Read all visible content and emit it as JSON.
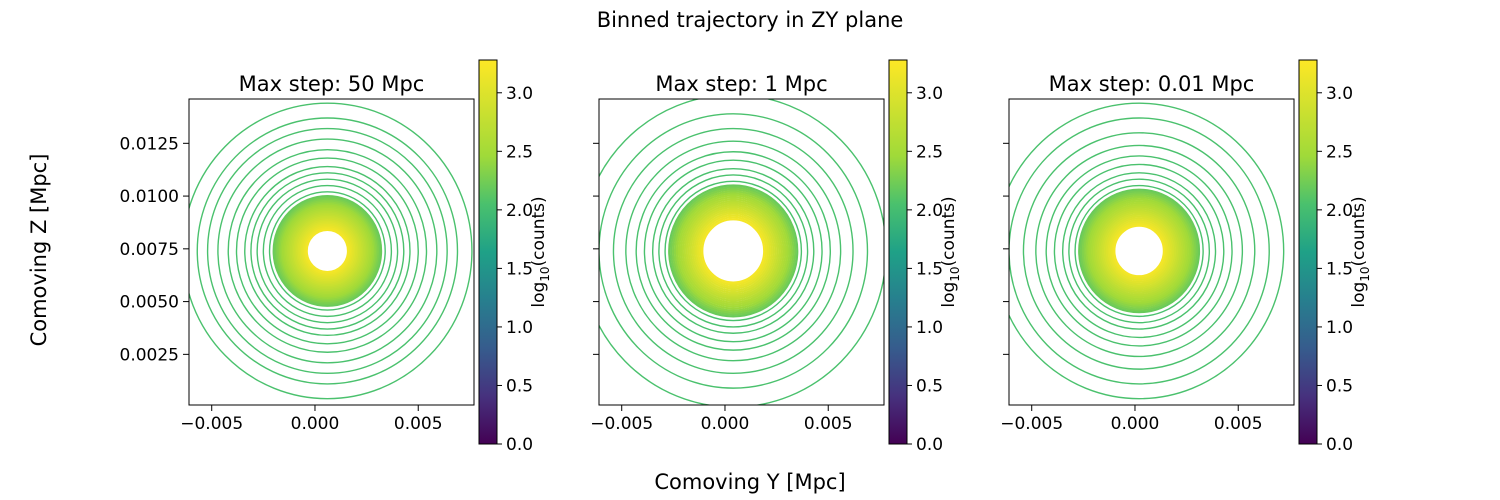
{
  "figure": {
    "suptitle": "Binned trajectory in ZY plane",
    "xlabel": "Comoving Y [Mpc]",
    "ylabel": "Comoving Z [Mpc]"
  },
  "chart_data": [
    {
      "type": "heatmap",
      "title": "Max step: 50 Mpc",
      "xlim": [
        -0.0061,
        0.0077
      ],
      "ylim": [
        0.0001,
        0.0146
      ],
      "x_ticks": [
        -0.005,
        0.0,
        0.005
      ],
      "x_tick_labels": [
        "−0.005",
        "0.000",
        "0.005"
      ],
      "y_ticks": [
        0.0025,
        0.005,
        0.0075,
        0.01,
        0.0125
      ],
      "y_tick_labels": [
        "0.0025",
        "0.0050",
        "0.0075",
        "0.0100",
        "0.0125"
      ],
      "center": [
        0.0006,
        0.0074
      ],
      "hole_radius": 0.00095,
      "inner_rings": {
        "r_start": 0.001,
        "r_end": 0.0026,
        "count": 22,
        "log_start": 3.2,
        "log_end": 2.2
      },
      "outer_rings": {
        "radii": [
          0.0028,
          0.0031,
          0.0034,
          0.0037,
          0.004,
          0.0044,
          0.0048,
          0.0053,
          0.0058,
          0.0063,
          0.007
        ],
        "log_value": 2.05
      },
      "colorbar": {
        "label": "log10(counts)",
        "range": [
          0.0,
          3.28
        ],
        "ticks": [
          0.0,
          0.5,
          1.0,
          1.5,
          2.0,
          2.5,
          3.0
        ],
        "tick_labels": [
          "0.0",
          "0.5",
          "1.0",
          "1.5",
          "2.0",
          "2.5",
          "3.0"
        ]
      }
    },
    {
      "type": "heatmap",
      "title": "Max step: 1 Mpc",
      "xlim": [
        -0.0061,
        0.0077
      ],
      "ylim": [
        0.0001,
        0.0146
      ],
      "x_ticks": [
        -0.005,
        0.0,
        0.005
      ],
      "x_tick_labels": [
        "−0.005",
        "0.000",
        "0.005"
      ],
      "y_ticks": [
        0.0025,
        0.005,
        0.0075,
        0.01,
        0.0125
      ],
      "y_tick_labels": [
        "",
        "",
        "",
        "",
        ""
      ],
      "center": [
        0.0004,
        0.0074
      ],
      "hole_radius": 0.0014,
      "inner_rings": {
        "r_start": 0.0015,
        "r_end": 0.0031,
        "count": 18,
        "log_start": 3.2,
        "log_end": 2.2
      },
      "outer_rings": {
        "radii": [
          0.0033,
          0.0036,
          0.0039,
          0.0043,
          0.0047,
          0.0052,
          0.0058,
          0.0065,
          0.0074
        ],
        "log_value": 2.05
      },
      "colorbar": {
        "label": "log10(counts)",
        "range": [
          0.0,
          3.28
        ],
        "ticks": [
          0.0,
          0.5,
          1.0,
          1.5,
          2.0,
          2.5,
          3.0
        ],
        "tick_labels": [
          "0.0",
          "0.5",
          "1.0",
          "1.5",
          "2.0",
          "2.5",
          "3.0"
        ]
      }
    },
    {
      "type": "heatmap",
      "title": "Max step: 0.01 Mpc",
      "xlim": [
        -0.0061,
        0.0077
      ],
      "ylim": [
        0.0001,
        0.0146
      ],
      "x_ticks": [
        -0.005,
        0.0,
        0.005
      ],
      "x_tick_labels": [
        "−0.005",
        "0.000",
        "0.005"
      ],
      "y_ticks": [
        0.0025,
        0.005,
        0.0075,
        0.01,
        0.0125
      ],
      "y_tick_labels": [
        "",
        "",
        "",
        "",
        ""
      ],
      "center": [
        0.0002,
        0.0074
      ],
      "hole_radius": 0.0011,
      "inner_rings": {
        "r_start": 0.0012,
        "r_end": 0.0029,
        "count": 20,
        "log_start": 3.2,
        "log_end": 2.2
      },
      "outer_rings": {
        "radii": [
          0.0031,
          0.0034,
          0.0037,
          0.0041,
          0.0045,
          0.005,
          0.0056,
          0.0063,
          0.007
        ],
        "log_value": 2.05
      },
      "colorbar": {
        "label": "log10(counts)",
        "range": [
          0.0,
          3.28
        ],
        "ticks": [
          0.0,
          0.5,
          1.0,
          1.5,
          2.0,
          2.5,
          3.0
        ],
        "tick_labels": [
          "0.0",
          "0.5",
          "1.0",
          "1.5",
          "2.0",
          "2.5",
          "3.0"
        ]
      }
    }
  ]
}
